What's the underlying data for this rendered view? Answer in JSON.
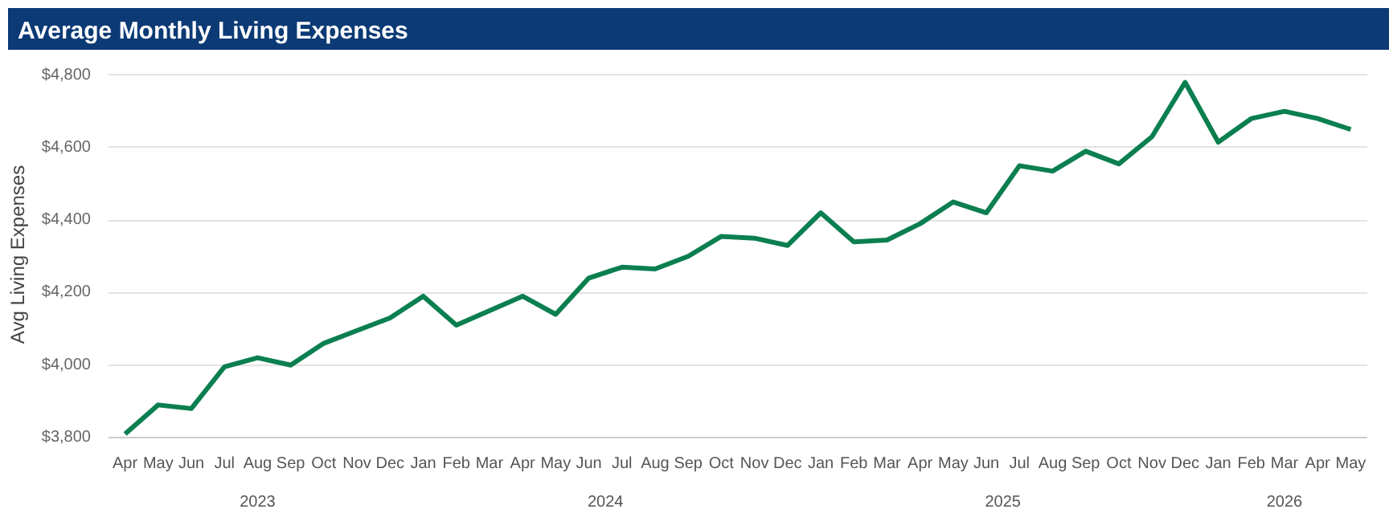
{
  "chart_data": {
    "type": "line",
    "title": "Average Monthly Living Expenses",
    "ylabel": "Avg Living Expenses",
    "x": [
      "2023-04",
      "2023-05",
      "2023-06",
      "2023-07",
      "2023-08",
      "2023-09",
      "2023-10",
      "2023-11",
      "2023-12",
      "2024-01",
      "2024-02",
      "2024-03",
      "2024-04",
      "2024-05",
      "2024-06",
      "2024-07",
      "2024-08",
      "2024-09",
      "2024-10",
      "2024-11",
      "2024-12",
      "2025-01",
      "2025-02",
      "2025-03",
      "2025-04",
      "2025-05",
      "2025-06",
      "2025-07",
      "2025-08",
      "2025-09",
      "2025-10",
      "2025-11",
      "2025-12",
      "2026-01",
      "2026-02",
      "2026-03",
      "2026-04",
      "2026-05"
    ],
    "series": [
      {
        "color": "#0b7f4f",
        "values": [
          3810,
          3890,
          3880,
          3995,
          4020,
          4000,
          4060,
          4095,
          4130,
          4190,
          4110,
          4150,
          4190,
          4140,
          4240,
          4270,
          4265,
          4300,
          4355,
          4350,
          4330,
          4420,
          4340,
          4345,
          4390,
          4450,
          4420,
          4550,
          4535,
          4590,
          4555,
          4630,
          4780,
          4615,
          4680,
          4700,
          4680,
          4650
        ]
      }
    ],
    "xticks": [
      {
        "value": "2023-04",
        "label": "Apr"
      },
      {
        "value": "2023-05",
        "label": "May"
      },
      {
        "value": "2023-06",
        "label": "Jun"
      },
      {
        "value": "2023-07",
        "label": "Jul"
      },
      {
        "value": "2023-08",
        "label": "Aug"
      },
      {
        "value": "2023-09",
        "label": "Sep"
      },
      {
        "value": "2023-10",
        "label": "Oct"
      },
      {
        "value": "2023-11",
        "label": "Nov"
      },
      {
        "value": "2023-12",
        "label": "Dec"
      },
      {
        "value": "2024-01",
        "label": "Jan"
      },
      {
        "value": "2024-02",
        "label": "Feb"
      },
      {
        "value": "2024-03",
        "label": "Mar"
      },
      {
        "value": "2024-04",
        "label": "Apr"
      },
      {
        "value": "2024-05",
        "label": "May"
      },
      {
        "value": "2024-06",
        "label": "Jun"
      },
      {
        "value": "2024-07",
        "label": "Jul"
      },
      {
        "value": "2024-08",
        "label": "Aug"
      },
      {
        "value": "2024-09",
        "label": "Sep"
      },
      {
        "value": "2024-10",
        "label": "Oct"
      },
      {
        "value": "2024-11",
        "label": "Nov"
      },
      {
        "value": "2024-12",
        "label": "Dec"
      },
      {
        "value": "2025-01",
        "label": "Jan"
      },
      {
        "value": "2025-02",
        "label": "Feb"
      },
      {
        "value": "2025-03",
        "label": "Mar"
      },
      {
        "value": "2025-04",
        "label": "Apr"
      },
      {
        "value": "2025-05",
        "label": "May"
      },
      {
        "value": "2025-06",
        "label": "Jun"
      },
      {
        "value": "2025-07",
        "label": "Jul"
      },
      {
        "value": "2025-08",
        "label": "Aug"
      },
      {
        "value": "2025-09",
        "label": "Sep"
      },
      {
        "value": "2025-10",
        "label": "Oct"
      },
      {
        "value": "2025-11",
        "label": "Nov"
      },
      {
        "value": "2025-12",
        "label": "Dec"
      },
      {
        "value": "2026-01",
        "label": "Jan"
      },
      {
        "value": "2026-02",
        "label": "Feb"
      },
      {
        "value": "2026-03",
        "label": "Mar"
      },
      {
        "value": "2026-04",
        "label": "Apr"
      },
      {
        "value": "2026-05",
        "label": "May"
      }
    ],
    "annotations": [
      "2023",
      "2024",
      "2025",
      "2026"
    ],
    "xlim": [
      "2023-03-16",
      "2026-05-16"
    ],
    "ylim": [
      3800,
      4810
    ],
    "yticks": [
      {
        "value": 3800,
        "label": "$3,800"
      },
      {
        "value": 4000,
        "label": "$4,000"
      },
      {
        "value": 4200,
        "label": "$4,200"
      },
      {
        "value": 4400,
        "label": "$4,400"
      },
      {
        "value": 4600,
        "label": "$4,600"
      },
      {
        "value": 4800,
        "label": "$4,800"
      }
    ],
    "grid": "y",
    "marker": "none",
    "line_style": "solid"
  }
}
